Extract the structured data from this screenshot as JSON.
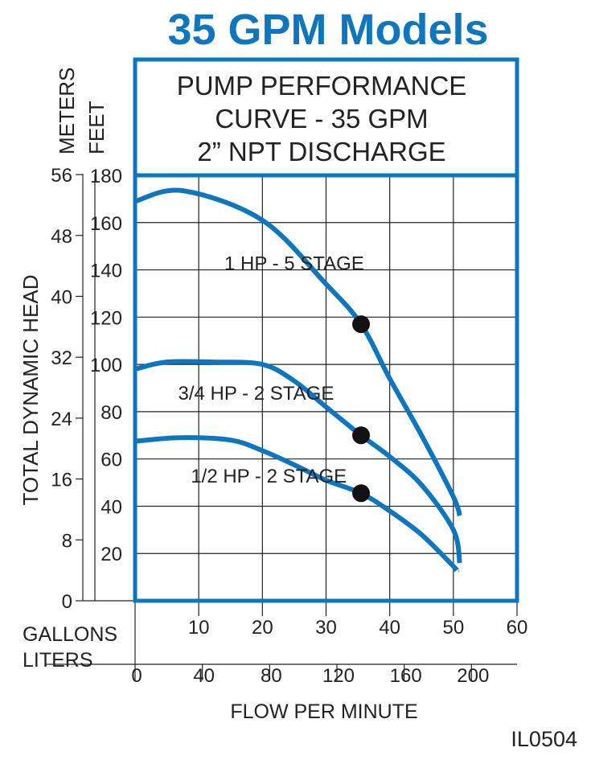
{
  "chart_data": {
    "type": "line",
    "title": "35 GPM Models",
    "subtitle_lines": [
      "PUMP PERFORMANCE",
      "CURVE - 35 GPM",
      "2” NPT DISCHARGE"
    ],
    "ylabel": "TOTAL DYNAMIC HEAD",
    "y_units": {
      "primary": "FEET",
      "secondary": "METERS"
    },
    "xlabel": "FLOW PER MINUTE",
    "x_units": {
      "primary": "GALLONS",
      "secondary": "LITERS"
    },
    "xlim": [
      0,
      60
    ],
    "ylim": [
      0,
      180
    ],
    "feet_ticks": [
      20,
      40,
      60,
      80,
      100,
      120,
      140,
      160,
      180
    ],
    "meter_ticks": [
      0,
      8,
      16,
      24,
      32,
      40,
      48,
      56
    ],
    "gallon_ticks": [
      10,
      20,
      30,
      40,
      50,
      60
    ],
    "liter_ticks": [
      0,
      40,
      80,
      120,
      160,
      200
    ],
    "grid": true,
    "series": [
      {
        "name": "1 HP - 5 STAGE",
        "x": [
          0,
          7.5,
          20,
          30,
          35.5,
          40,
          45,
          50,
          51
        ],
        "y": [
          169,
          173.5,
          161,
          134,
          117,
          94,
          70,
          44,
          36
        ],
        "marker": {
          "x": 35.5,
          "y": 117
        }
      },
      {
        "name": "3/4 HP - 2 STAGE",
        "x": [
          0,
          5,
          12.5,
          20,
          25,
          30,
          35.5,
          40,
          45,
          50,
          51
        ],
        "y": [
          98,
          101,
          101,
          100,
          93,
          82,
          70,
          61,
          49,
          30,
          16
        ],
        "marker": {
          "x": 35.5,
          "y": 70
        }
      },
      {
        "name": "1/2 HP - 2 STAGE",
        "x": [
          0,
          7,
          15,
          20,
          25,
          30,
          35.5,
          40,
          45,
          50,
          50.5
        ],
        "y": [
          67.5,
          69,
          68,
          63.5,
          57.5,
          51,
          45.5,
          38,
          28,
          14.6,
          12.8
        ],
        "marker": {
          "x": 35.5,
          "y": 45.5
        }
      }
    ],
    "footer_code": "IL0504",
    "colors": {
      "curve": "#0f75bc",
      "title": "#0f75bc",
      "marker": "#111111",
      "grid": "#222222"
    }
  }
}
